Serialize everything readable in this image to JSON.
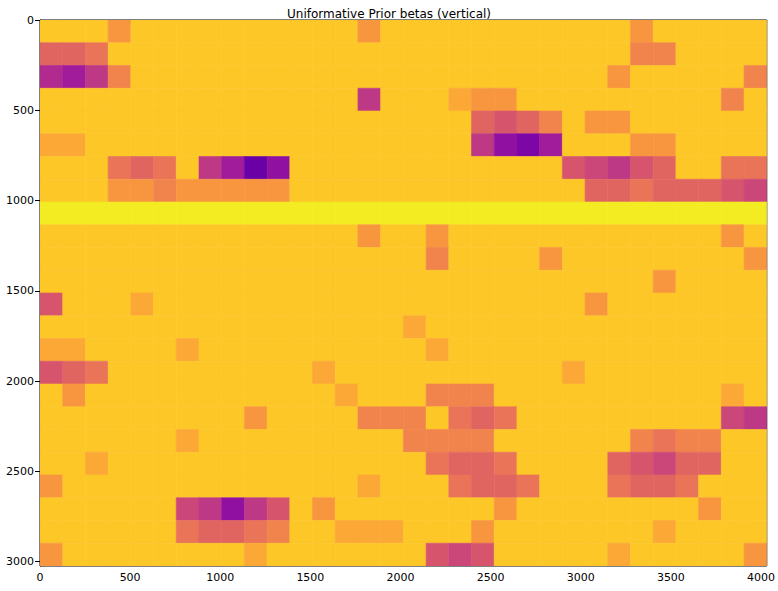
{
  "chart_data": {
    "type": "heatmap",
    "title": "Uniformative Prior betas (vertical)",
    "xlim": [
      0,
      4032
    ],
    "ylim": [
      3024,
      0
    ],
    "xticks": [
      0,
      500,
      1000,
      1500,
      2000,
      2500,
      3000,
      3500,
      4000
    ],
    "yticks": [
      0,
      500,
      1000,
      1500,
      2000,
      2500,
      3000
    ],
    "grid": false,
    "color_range": [
      0,
      1
    ],
    "x_edges": [
      0,
      126,
      252,
      378,
      504,
      630,
      756,
      882,
      1008,
      1134,
      1260,
      1386,
      1512,
      1638,
      1764,
      1890,
      2016,
      2142,
      2268,
      2394,
      2520,
      2646,
      2772,
      2898,
      3024,
      3150,
      3276,
      3402,
      3528,
      3654,
      3780,
      3906,
      4032
    ],
    "y_edges": [
      0,
      126,
      252,
      378,
      504,
      630,
      756,
      882,
      1008,
      1134,
      1260,
      1386,
      1512,
      1638,
      1764,
      1890,
      2016,
      2142,
      2268,
      2394,
      2520,
      2646,
      2772,
      2898,
      3024
    ],
    "cells": [
      [
        0.88,
        0.88,
        0.88,
        0.75,
        0.88,
        0.88,
        0.88,
        0.88,
        0.88,
        0.88,
        0.88,
        0.88,
        0.88,
        0.88,
        0.75,
        0.88,
        0.88,
        0.88,
        0.88,
        0.88,
        0.88,
        0.88,
        0.88,
        0.88,
        0.88,
        0.88,
        0.75,
        0.88,
        0.88,
        0.88,
        0.88,
        0.88
      ],
      [
        0.6,
        0.6,
        0.65,
        0.88,
        0.88,
        0.88,
        0.88,
        0.88,
        0.88,
        0.88,
        0.88,
        0.88,
        0.88,
        0.88,
        0.88,
        0.88,
        0.88,
        0.88,
        0.88,
        0.88,
        0.88,
        0.88,
        0.88,
        0.88,
        0.88,
        0.88,
        0.7,
        0.7,
        0.88,
        0.88,
        0.88,
        0.88
      ],
      [
        0.4,
        0.35,
        0.45,
        0.7,
        0.88,
        0.88,
        0.88,
        0.88,
        0.88,
        0.88,
        0.88,
        0.88,
        0.88,
        0.88,
        0.88,
        0.88,
        0.88,
        0.88,
        0.88,
        0.88,
        0.88,
        0.88,
        0.88,
        0.88,
        0.88,
        0.75,
        0.88,
        0.88,
        0.88,
        0.88,
        0.88,
        0.7
      ],
      [
        0.88,
        0.88,
        0.88,
        0.88,
        0.88,
        0.88,
        0.88,
        0.88,
        0.88,
        0.88,
        0.88,
        0.88,
        0.88,
        0.88,
        0.45,
        0.88,
        0.88,
        0.88,
        0.8,
        0.75,
        0.75,
        0.88,
        0.88,
        0.88,
        0.88,
        0.88,
        0.88,
        0.88,
        0.88,
        0.88,
        0.7,
        0.88
      ],
      [
        0.88,
        0.88,
        0.88,
        0.88,
        0.88,
        0.88,
        0.88,
        0.88,
        0.88,
        0.88,
        0.88,
        0.88,
        0.88,
        0.88,
        0.88,
        0.88,
        0.88,
        0.88,
        0.88,
        0.6,
        0.55,
        0.6,
        0.7,
        0.88,
        0.75,
        0.75,
        0.88,
        0.88,
        0.88,
        0.88,
        0.88,
        0.88
      ],
      [
        0.8,
        0.8,
        0.88,
        0.88,
        0.88,
        0.88,
        0.88,
        0.88,
        0.88,
        0.88,
        0.88,
        0.88,
        0.88,
        0.88,
        0.88,
        0.88,
        0.88,
        0.88,
        0.88,
        0.45,
        0.3,
        0.25,
        0.35,
        0.88,
        0.88,
        0.88,
        0.75,
        0.75,
        0.88,
        0.88,
        0.88,
        0.88
      ],
      [
        0.88,
        0.88,
        0.88,
        0.65,
        0.6,
        0.65,
        0.88,
        0.45,
        0.35,
        0.2,
        0.3,
        0.88,
        0.88,
        0.88,
        0.88,
        0.88,
        0.88,
        0.88,
        0.88,
        0.88,
        0.88,
        0.88,
        0.88,
        0.55,
        0.5,
        0.45,
        0.55,
        0.6,
        0.88,
        0.88,
        0.65,
        0.65
      ],
      [
        0.88,
        0.88,
        0.88,
        0.75,
        0.75,
        0.7,
        0.75,
        0.75,
        0.75,
        0.75,
        0.75,
        0.88,
        0.88,
        0.88,
        0.88,
        0.88,
        0.88,
        0.88,
        0.88,
        0.88,
        0.88,
        0.88,
        0.88,
        0.88,
        0.6,
        0.6,
        0.65,
        0.6,
        0.6,
        0.6,
        0.55,
        0.5
      ],
      [
        0.97,
        0.97,
        0.97,
        0.97,
        0.97,
        0.97,
        0.97,
        0.97,
        0.97,
        0.97,
        0.97,
        0.97,
        0.97,
        0.97,
        0.97,
        0.97,
        0.97,
        0.97,
        0.97,
        0.97,
        0.97,
        0.97,
        0.97,
        0.97,
        0.97,
        0.97,
        0.97,
        0.97,
        0.97,
        0.97,
        0.97,
        0.97
      ],
      [
        0.88,
        0.88,
        0.88,
        0.88,
        0.88,
        0.88,
        0.88,
        0.88,
        0.88,
        0.88,
        0.88,
        0.88,
        0.88,
        0.88,
        0.75,
        0.88,
        0.88,
        0.75,
        0.88,
        0.88,
        0.88,
        0.88,
        0.88,
        0.88,
        0.88,
        0.88,
        0.88,
        0.88,
        0.88,
        0.88,
        0.75,
        0.88
      ],
      [
        0.88,
        0.88,
        0.88,
        0.88,
        0.88,
        0.88,
        0.88,
        0.88,
        0.88,
        0.88,
        0.88,
        0.88,
        0.88,
        0.88,
        0.88,
        0.88,
        0.88,
        0.7,
        0.88,
        0.88,
        0.88,
        0.88,
        0.75,
        0.88,
        0.88,
        0.88,
        0.88,
        0.88,
        0.88,
        0.88,
        0.88,
        0.75
      ],
      [
        0.88,
        0.88,
        0.88,
        0.88,
        0.88,
        0.88,
        0.88,
        0.88,
        0.88,
        0.88,
        0.88,
        0.88,
        0.88,
        0.88,
        0.88,
        0.88,
        0.88,
        0.88,
        0.88,
        0.88,
        0.88,
        0.88,
        0.88,
        0.88,
        0.88,
        0.88,
        0.88,
        0.75,
        0.88,
        0.88,
        0.88,
        0.88
      ],
      [
        0.55,
        0.88,
        0.88,
        0.88,
        0.8,
        0.88,
        0.88,
        0.88,
        0.88,
        0.88,
        0.88,
        0.88,
        0.88,
        0.88,
        0.88,
        0.88,
        0.88,
        0.88,
        0.88,
        0.88,
        0.88,
        0.88,
        0.88,
        0.88,
        0.75,
        0.88,
        0.88,
        0.88,
        0.88,
        0.88,
        0.88,
        0.88
      ],
      [
        0.88,
        0.88,
        0.88,
        0.88,
        0.88,
        0.88,
        0.88,
        0.88,
        0.88,
        0.88,
        0.88,
        0.88,
        0.88,
        0.88,
        0.88,
        0.88,
        0.8,
        0.88,
        0.88,
        0.88,
        0.88,
        0.88,
        0.88,
        0.88,
        0.88,
        0.88,
        0.88,
        0.88,
        0.88,
        0.88,
        0.88,
        0.88
      ],
      [
        0.8,
        0.8,
        0.88,
        0.88,
        0.88,
        0.88,
        0.8,
        0.88,
        0.88,
        0.88,
        0.88,
        0.88,
        0.88,
        0.88,
        0.88,
        0.88,
        0.88,
        0.8,
        0.88,
        0.88,
        0.88,
        0.88,
        0.88,
        0.88,
        0.88,
        0.88,
        0.88,
        0.88,
        0.88,
        0.88,
        0.88,
        0.88
      ],
      [
        0.55,
        0.6,
        0.65,
        0.88,
        0.88,
        0.88,
        0.88,
        0.88,
        0.88,
        0.88,
        0.88,
        0.88,
        0.8,
        0.88,
        0.88,
        0.88,
        0.88,
        0.88,
        0.88,
        0.88,
        0.88,
        0.88,
        0.88,
        0.8,
        0.88,
        0.88,
        0.88,
        0.88,
        0.88,
        0.88,
        0.88,
        0.88
      ],
      [
        0.88,
        0.75,
        0.88,
        0.88,
        0.88,
        0.88,
        0.88,
        0.88,
        0.88,
        0.88,
        0.88,
        0.88,
        0.88,
        0.8,
        0.88,
        0.88,
        0.88,
        0.7,
        0.7,
        0.7,
        0.88,
        0.88,
        0.88,
        0.88,
        0.88,
        0.88,
        0.88,
        0.88,
        0.88,
        0.88,
        0.8,
        0.88
      ],
      [
        0.88,
        0.88,
        0.88,
        0.88,
        0.88,
        0.88,
        0.88,
        0.88,
        0.88,
        0.75,
        0.88,
        0.88,
        0.88,
        0.88,
        0.7,
        0.7,
        0.7,
        0.88,
        0.65,
        0.6,
        0.65,
        0.88,
        0.88,
        0.88,
        0.88,
        0.88,
        0.88,
        0.88,
        0.88,
        0.88,
        0.5,
        0.45
      ],
      [
        0.88,
        0.88,
        0.88,
        0.88,
        0.88,
        0.88,
        0.8,
        0.88,
        0.88,
        0.88,
        0.88,
        0.88,
        0.88,
        0.88,
        0.88,
        0.88,
        0.7,
        0.7,
        0.7,
        0.7,
        0.88,
        0.88,
        0.88,
        0.88,
        0.88,
        0.88,
        0.7,
        0.65,
        0.7,
        0.7,
        0.88,
        0.88
      ],
      [
        0.88,
        0.88,
        0.8,
        0.88,
        0.88,
        0.88,
        0.88,
        0.88,
        0.88,
        0.88,
        0.88,
        0.88,
        0.88,
        0.88,
        0.88,
        0.88,
        0.88,
        0.65,
        0.6,
        0.6,
        0.65,
        0.88,
        0.88,
        0.88,
        0.88,
        0.6,
        0.55,
        0.5,
        0.6,
        0.6,
        0.88,
        0.88
      ],
      [
        0.75,
        0.88,
        0.88,
        0.88,
        0.88,
        0.88,
        0.88,
        0.88,
        0.88,
        0.88,
        0.88,
        0.88,
        0.88,
        0.88,
        0.8,
        0.88,
        0.88,
        0.88,
        0.65,
        0.6,
        0.6,
        0.65,
        0.88,
        0.88,
        0.88,
        0.65,
        0.6,
        0.6,
        0.65,
        0.88,
        0.88,
        0.88
      ],
      [
        0.88,
        0.88,
        0.88,
        0.88,
        0.88,
        0.88,
        0.5,
        0.45,
        0.3,
        0.45,
        0.55,
        0.88,
        0.75,
        0.88,
        0.88,
        0.88,
        0.88,
        0.88,
        0.88,
        0.88,
        0.75,
        0.88,
        0.88,
        0.88,
        0.88,
        0.88,
        0.88,
        0.88,
        0.88,
        0.75,
        0.88,
        0.88
      ],
      [
        0.88,
        0.88,
        0.88,
        0.88,
        0.88,
        0.88,
        0.65,
        0.6,
        0.6,
        0.65,
        0.7,
        0.88,
        0.88,
        0.8,
        0.8,
        0.8,
        0.88,
        0.88,
        0.88,
        0.75,
        0.88,
        0.88,
        0.88,
        0.88,
        0.88,
        0.88,
        0.88,
        0.8,
        0.88,
        0.88,
        0.88,
        0.88
      ],
      [
        0.75,
        0.88,
        0.88,
        0.88,
        0.88,
        0.88,
        0.88,
        0.88,
        0.88,
        0.8,
        0.88,
        0.88,
        0.88,
        0.88,
        0.88,
        0.88,
        0.88,
        0.55,
        0.5,
        0.55,
        0.88,
        0.88,
        0.88,
        0.88,
        0.88,
        0.8,
        0.88,
        0.88,
        0.88,
        0.88,
        0.88,
        0.75
      ]
    ]
  }
}
